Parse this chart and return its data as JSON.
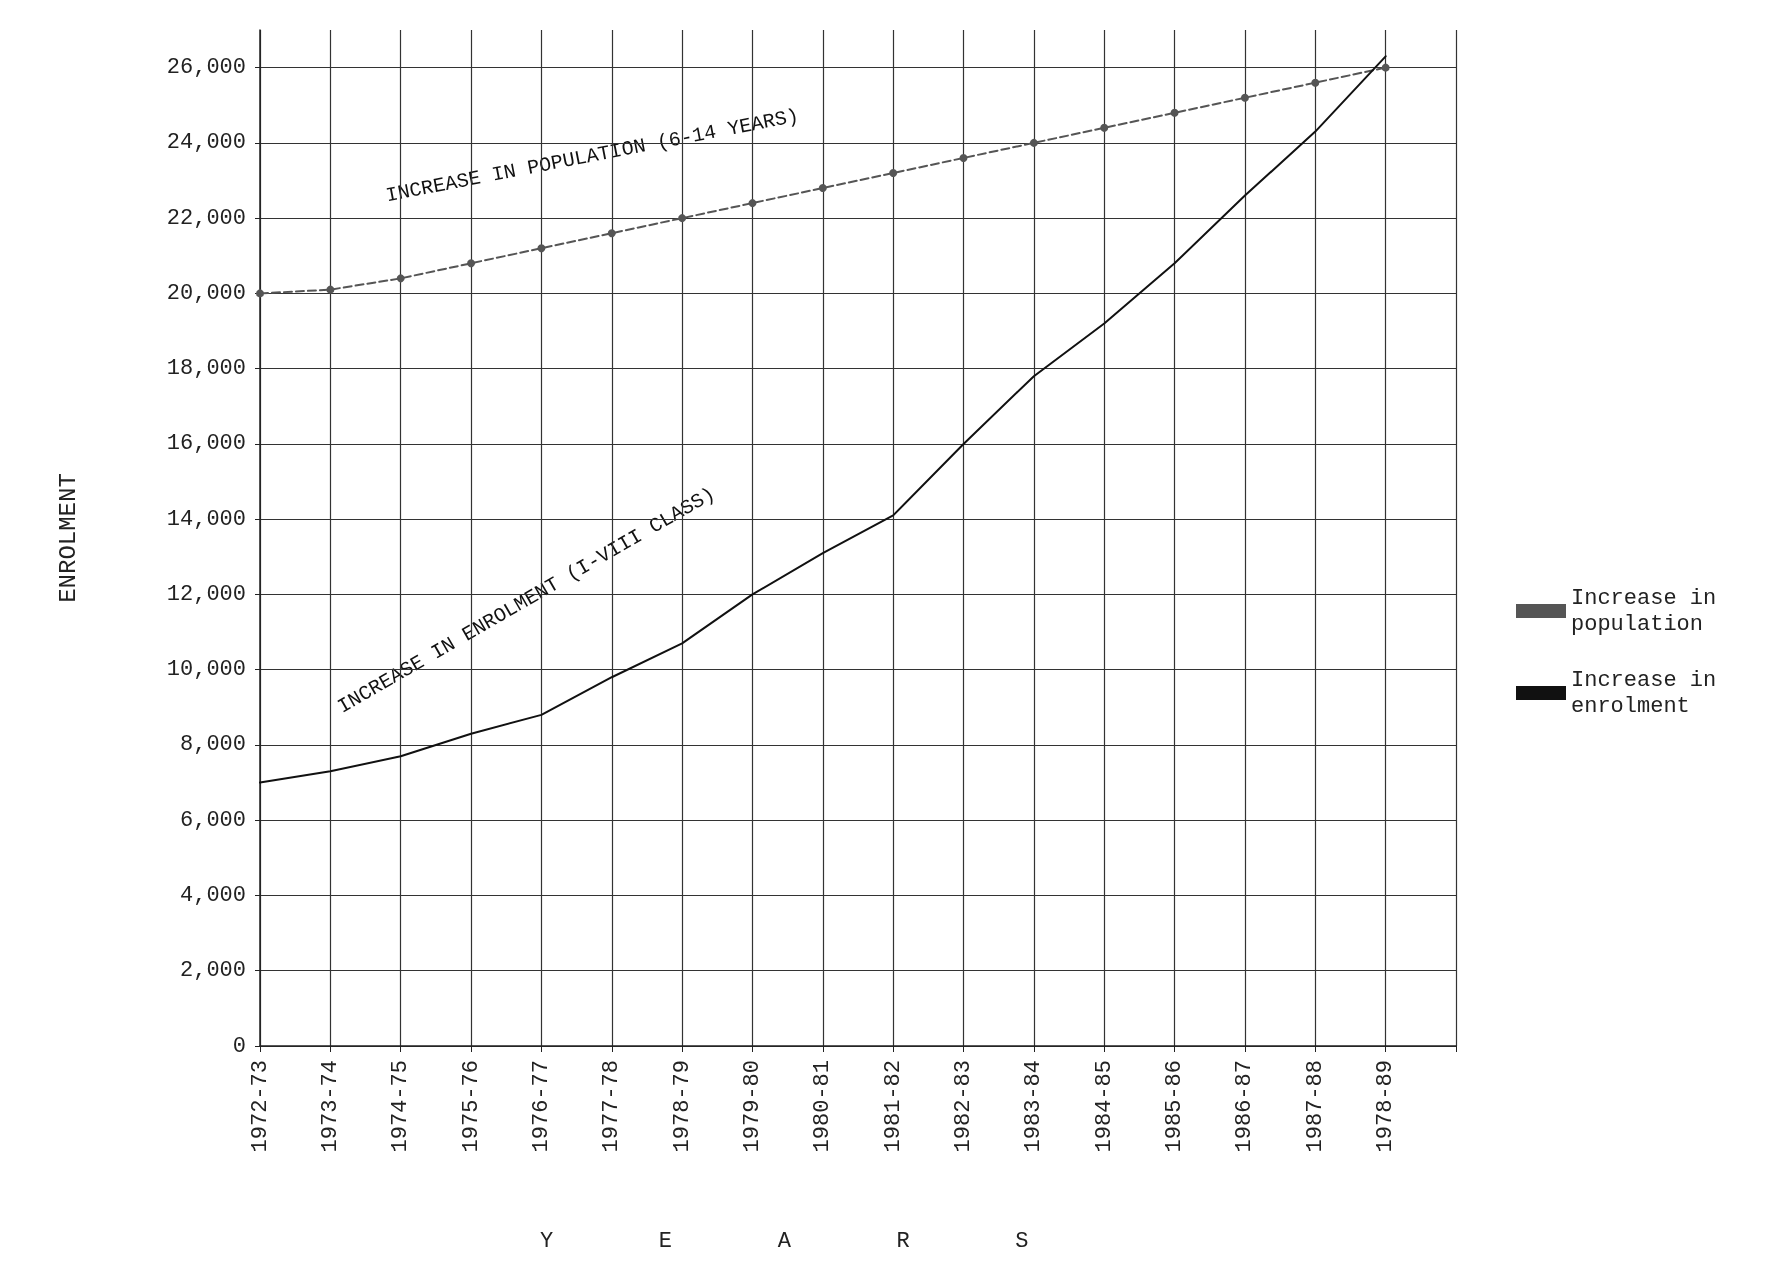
{
  "chart_data": {
    "type": "line",
    "xlabel": "Y E A R S",
    "ylabel": "ENROLMENT",
    "categories": [
      "1972-73",
      "1973-74",
      "1974-75",
      "1975-76",
      "1976-77",
      "1977-78",
      "1978-79",
      "1979-80",
      "1980-81",
      "1981-82",
      "1982-83",
      "1983-84",
      "1984-85",
      "1985-86",
      "1986-87",
      "1987-88",
      "1978-89",
      null
    ],
    "series": [
      {
        "name": "Increase in population",
        "color": "#555555",
        "marker": "circle",
        "line_style": "dashed",
        "values": [
          20000,
          20100,
          20400,
          20800,
          21200,
          21600,
          22000,
          22400,
          22800,
          23200,
          23600,
          24000,
          24400,
          24800,
          25200,
          25600,
          26000,
          null
        ]
      },
      {
        "name": "Increase in enrolment",
        "color": "#111111",
        "marker": "none",
        "line_style": "solid",
        "values": [
          7000,
          7300,
          7700,
          8300,
          8800,
          9800,
          10700,
          12000,
          13100,
          14100,
          16000,
          17800,
          19200,
          20800,
          22600,
          24300,
          26300,
          null
        ]
      }
    ],
    "annotations": [
      "INCREASE IN POPULATION (6-14 YEARS)",
      "INCREASE IN ENROLMENT (I-VIII CLASS)"
    ],
    "ylim": [
      0,
      27000
    ],
    "yticks": [
      0,
      {
        "value": 2000,
        "label": "2,000"
      },
      {
        "value": 4000,
        "label": "4,000"
      },
      {
        "value": 6000,
        "label": "6,000"
      },
      {
        "value": 8000,
        "label": "8,000"
      },
      {
        "value": 10000,
        "label": "10,000"
      },
      {
        "value": 12000,
        "label": "12,000"
      },
      {
        "value": 14000,
        "label": "14,000"
      },
      {
        "value": 16000,
        "label": "16,000"
      },
      {
        "value": 18000,
        "label": "18,000"
      },
      {
        "value": 20000,
        "label": "20,000"
      },
      {
        "value": 22000,
        "label": "22,000"
      },
      {
        "value": 24000,
        "label": "24,000"
      },
      {
        "value": 26000,
        "label": "26,000"
      }
    ],
    "grid": true,
    "legend": "right"
  }
}
